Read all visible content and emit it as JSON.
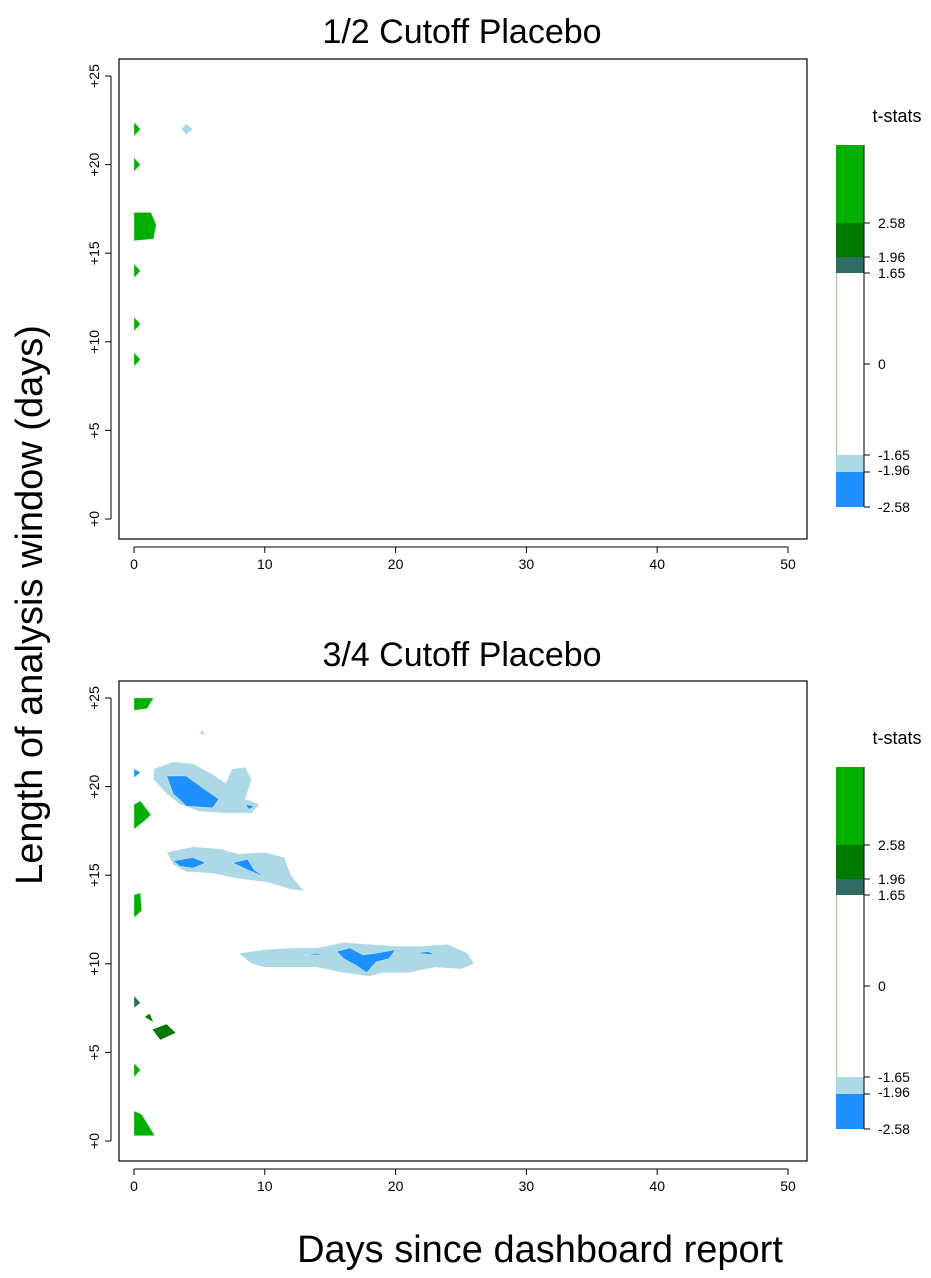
{
  "figure": {
    "ylabel": "Length of analysis window (days)",
    "xlabel": "Days since dashboard report"
  },
  "chart_data": [
    {
      "type": "heatmap",
      "title": "1/2 Cutoff Placebo",
      "xlim": [
        0,
        50
      ],
      "ylim": [
        0,
        25
      ],
      "x_ticks": [
        "0",
        "10",
        "20",
        "30",
        "40",
        "50"
      ],
      "y_ticks": [
        "+0",
        "+5",
        "+10",
        "+15",
        "+20",
        "+25"
      ],
      "legend": {
        "title": "t-stats",
        "labels": [
          "2.58",
          "1.96",
          "1.65",
          "0",
          "-1.65",
          "-1.96",
          "-2.58"
        ],
        "colors": {
          "pos_258": "#00b000",
          "pos_196": "#007a00",
          "pos_165": "#2e6b60",
          "neg_165": "#add8e6",
          "neg_196": "#1e90ff"
        }
      },
      "regions": [
        {
          "level": "pos_258",
          "points": [
            [
              0,
              21.6
            ],
            [
              0.5,
              22
            ],
            [
              0,
              22.4
            ]
          ]
        },
        {
          "level": "pos_258",
          "points": [
            [
              0,
              19.6
            ],
            [
              0.5,
              20
            ],
            [
              0,
              20.4
            ]
          ]
        },
        {
          "level": "pos_258",
          "points": [
            [
              0,
              15.7
            ],
            [
              1.5,
              15.8
            ],
            [
              1.7,
              16.6
            ],
            [
              1.3,
              17.3
            ],
            [
              0,
              17.3
            ]
          ]
        },
        {
          "level": "pos_258",
          "points": [
            [
              0,
              13.6
            ],
            [
              0.5,
              14
            ],
            [
              0,
              14.4
            ]
          ]
        },
        {
          "level": "pos_258",
          "points": [
            [
              0,
              10.6
            ],
            [
              0.5,
              11
            ],
            [
              0,
              11.4
            ]
          ]
        },
        {
          "level": "pos_258",
          "points": [
            [
              0,
              8.6
            ],
            [
              0.5,
              9
            ],
            [
              0,
              9.4
            ]
          ]
        },
        {
          "level": "neg_165",
          "points": [
            [
              3.6,
              22
            ],
            [
              4,
              22.3
            ],
            [
              4.5,
              22
            ],
            [
              4,
              21.7
            ]
          ]
        }
      ]
    },
    {
      "type": "heatmap",
      "title": "3/4 Cutoff Placebo",
      "xlim": [
        0,
        50
      ],
      "ylim": [
        0,
        25
      ],
      "x_ticks": [
        "0",
        "10",
        "20",
        "30",
        "40",
        "50"
      ],
      "y_ticks": [
        "+0",
        "+5",
        "+10",
        "+15",
        "+20",
        "+25"
      ],
      "legend": {
        "title": "t-stats",
        "labels": [
          "2.58",
          "1.96",
          "1.65",
          "0",
          "-1.65",
          "-1.96",
          "-2.58"
        ],
        "colors": {
          "pos_258": "#00b000",
          "pos_196": "#007a00",
          "pos_165": "#2e6b60",
          "neg_165": "#add8e6",
          "neg_196": "#1e90ff"
        }
      },
      "regions": [
        {
          "level": "pos_258",
          "points": [
            [
              0,
              24.3
            ],
            [
              1,
              24.4
            ],
            [
              1.5,
              25
            ],
            [
              0,
              25
            ]
          ]
        },
        {
          "level": "pos_258",
          "points": [
            [
              0,
              17.6
            ],
            [
              0.7,
              18
            ],
            [
              1.3,
              18.4
            ],
            [
              0.5,
              19.2
            ],
            [
              0,
              19
            ]
          ]
        },
        {
          "level": "pos_258",
          "points": [
            [
              0,
              12.6
            ],
            [
              0.6,
              13
            ],
            [
              0.5,
              14
            ],
            [
              0,
              13.9
            ]
          ]
        },
        {
          "level": "pos_258",
          "points": [
            [
              0,
              0.3
            ],
            [
              1.6,
              0.3
            ],
            [
              0.6,
              1.5
            ],
            [
              0,
              1.7
            ]
          ]
        },
        {
          "level": "pos_258",
          "points": [
            [
              0,
              3.6
            ],
            [
              0.5,
              4
            ],
            [
              0,
              4.4
            ]
          ]
        },
        {
          "level": "pos_165",
          "points": [
            [
              0,
              7.5
            ],
            [
              0.5,
              7.8
            ],
            [
              0,
              8.2
            ]
          ]
        },
        {
          "level": "pos_196",
          "points": [
            [
              0.8,
              7
            ],
            [
              1.5,
              6.7
            ],
            [
              1.2,
              7.2
            ]
          ]
        },
        {
          "level": "pos_196",
          "points": [
            [
              1.4,
              6.3
            ],
            [
              2,
              5.7
            ],
            [
              3.2,
              6.1
            ],
            [
              2.5,
              6.6
            ]
          ]
        },
        {
          "level": "neg_165",
          "points": [
            [
              1.5,
              21
            ],
            [
              3,
              21.4
            ],
            [
              4.5,
              21.3
            ],
            [
              6,
              20.7
            ],
            [
              7,
              20.2
            ],
            [
              7.5,
              21
            ],
            [
              8.5,
              21.1
            ],
            [
              9,
              20.4
            ],
            [
              8.5,
              19.3
            ],
            [
              9.6,
              19
            ],
            [
              9,
              18.5
            ],
            [
              7,
              18.5
            ],
            [
              5,
              18.6
            ],
            [
              3.5,
              19
            ],
            [
              2.5,
              19.6
            ],
            [
              1.5,
              20.4
            ]
          ]
        },
        {
          "level": "neg_196",
          "points": [
            [
              2.5,
              20.6
            ],
            [
              4,
              20.6
            ],
            [
              5.3,
              19.9
            ],
            [
              6.5,
              19.3
            ],
            [
              6,
              18.8
            ],
            [
              4,
              18.9
            ],
            [
              3,
              19.6
            ]
          ]
        },
        {
          "level": "neg_196",
          "points": [
            [
              8.5,
              19
            ],
            [
              9.2,
              18.9
            ],
            [
              8.8,
              18.7
            ]
          ]
        },
        {
          "level": "neg_196",
          "points": [
            [
              0,
              20.5
            ],
            [
              0.5,
              20.8
            ],
            [
              0,
              21
            ]
          ]
        },
        {
          "level": "neg_165",
          "points": [
            [
              2.5,
              16.3
            ],
            [
              4.5,
              16.6
            ],
            [
              6.5,
              16.5
            ],
            [
              8,
              16.2
            ],
            [
              10,
              16.3
            ],
            [
              11.5,
              16
            ],
            [
              12,
              15
            ],
            [
              13,
              14.1
            ],
            [
              12,
              14.2
            ],
            [
              10.2,
              14.6
            ],
            [
              8,
              14.8
            ],
            [
              6,
              15.1
            ],
            [
              4,
              15.2
            ],
            [
              3,
              15.6
            ]
          ]
        },
        {
          "level": "neg_196",
          "points": [
            [
              3,
              15.8
            ],
            [
              4.5,
              16
            ],
            [
              5.5,
              15.7
            ],
            [
              4.5,
              15.4
            ],
            [
              3.5,
              15.5
            ]
          ]
        },
        {
          "level": "neg_196",
          "points": [
            [
              7.5,
              15.7
            ],
            [
              8.7,
              15.9
            ],
            [
              9.2,
              15.3
            ],
            [
              10,
              14.9
            ],
            [
              9,
              15.2
            ]
          ]
        },
        {
          "level": "neg_165",
          "points": [
            [
              8,
              10.6
            ],
            [
              10,
              10.8
            ],
            [
              12,
              10.9
            ],
            [
              14,
              10.9
            ],
            [
              16,
              11.2
            ],
            [
              18,
              11.1
            ],
            [
              20,
              11
            ],
            [
              22,
              11
            ],
            [
              24,
              11.1
            ],
            [
              25.5,
              10.6
            ],
            [
              26,
              10
            ],
            [
              25,
              9.7
            ],
            [
              23,
              9.8
            ],
            [
              21,
              9.5
            ],
            [
              19,
              9.5
            ],
            [
              18,
              9.3
            ],
            [
              16,
              9.5
            ],
            [
              14,
              9.8
            ],
            [
              12,
              9.8
            ],
            [
              10,
              9.8
            ],
            [
              9,
              10
            ]
          ]
        },
        {
          "level": "neg_196",
          "points": [
            [
              15.5,
              10.7
            ],
            [
              16.5,
              10.9
            ],
            [
              17.5,
              10.5
            ],
            [
              18.5,
              10.6
            ],
            [
              20,
              10.8
            ],
            [
              19.5,
              10.3
            ],
            [
              18.5,
              10.1
            ],
            [
              17.8,
              9.5
            ],
            [
              17,
              9.9
            ],
            [
              16,
              10.3
            ]
          ]
        },
        {
          "level": "neg_196",
          "points": [
            [
              13,
              10.5
            ],
            [
              14,
              10.6
            ],
            [
              14.5,
              10.5
            ]
          ]
        },
        {
          "level": "neg_196",
          "points": [
            [
              21.5,
              10.6
            ],
            [
              22.5,
              10.7
            ],
            [
              23,
              10.5
            ]
          ]
        },
        {
          "level": "neg_165",
          "points": [
            [
              5,
              23
            ],
            [
              5.2,
              23.2
            ],
            [
              5.5,
              22.9
            ]
          ]
        }
      ]
    }
  ]
}
